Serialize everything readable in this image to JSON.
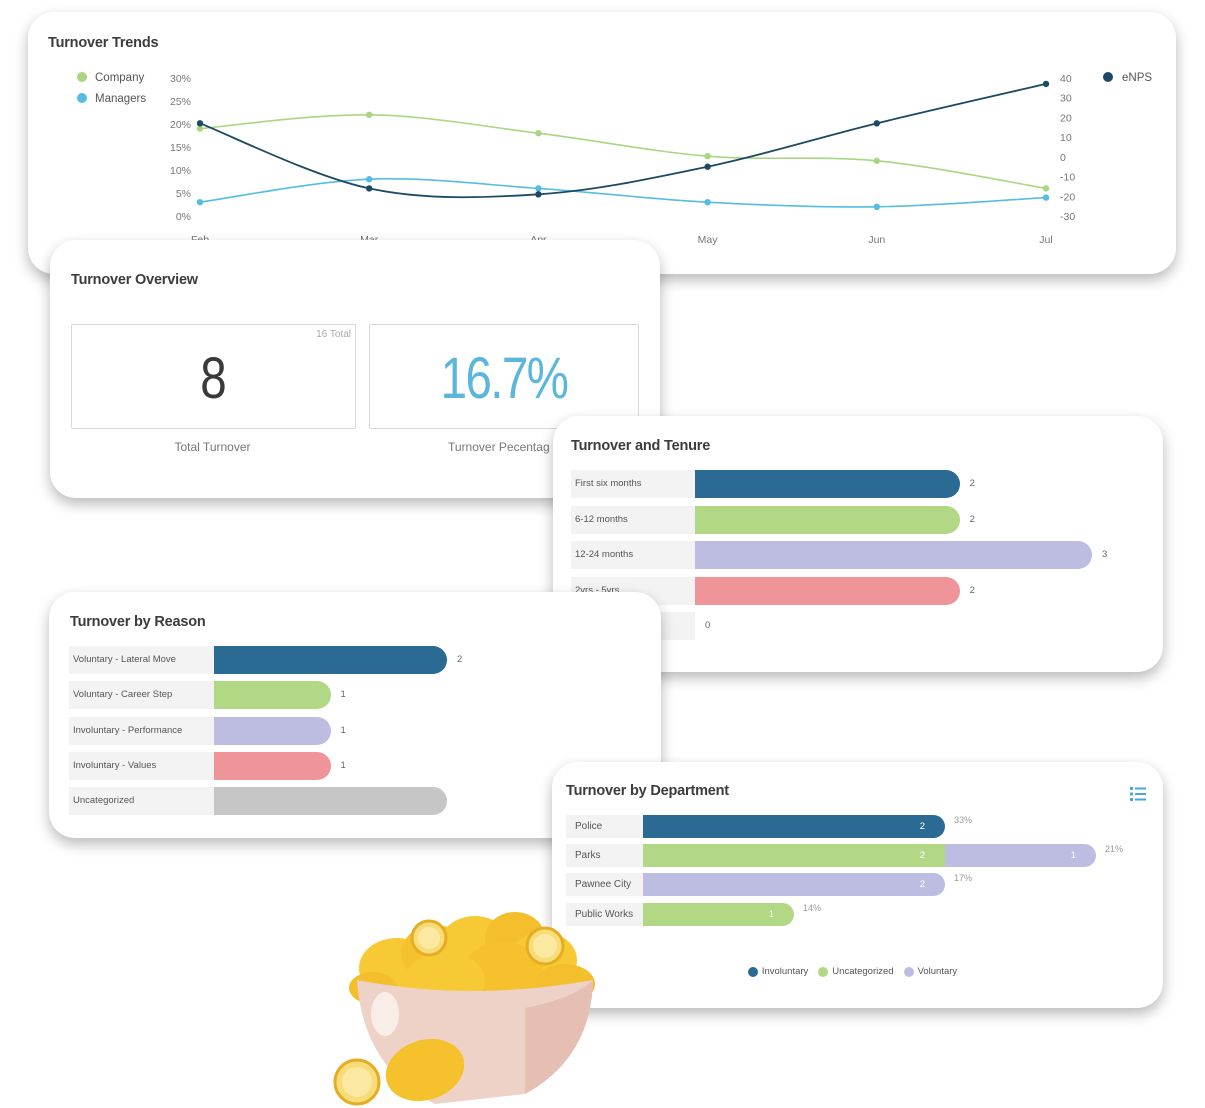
{
  "colors": {
    "company": "#a8d682",
    "managers": "#55bde2",
    "enps": "#1c4a65",
    "navy_bar": "#2b6a93",
    "green_bar": "#b2d885",
    "lavender_bar": "#bdbde1",
    "pink_bar": "#ef9599",
    "grey_bar": "#c6c6c6",
    "blue_text": "#5ab6da"
  },
  "trends": {
    "title": "Turnover Trends",
    "legend_company": "Company",
    "legend_managers": "Managers",
    "legend_enps": "eNPS"
  },
  "overview": {
    "title": "Turnover Overview",
    "total_value": "8",
    "total_note": "16 Total",
    "total_label": "Total Turnover",
    "pct_value": "16.7%",
    "pct_label": "Turnover Pecentag"
  },
  "tenure": {
    "title": "Turnover and Tenure",
    "rows": [
      {
        "label": "First six months",
        "value": 2,
        "value_text": "2",
        "color": "#2b6a93"
      },
      {
        "label": "6-12 months",
        "value": 2,
        "value_text": "2",
        "color": "#b2d885"
      },
      {
        "label": "12-24 months",
        "value": 3,
        "value_text": "3",
        "color": "#bdbde1"
      },
      {
        "label": "2yrs - 5yrs",
        "value": 2,
        "value_text": "2",
        "color": "#ef9599"
      },
      {
        "label": "",
        "value": 0,
        "value_text": "0",
        "color": "#c6c6c6"
      }
    ]
  },
  "reason": {
    "title": "Turnover by Reason",
    "rows": [
      {
        "label": "Voluntary - Lateral Move",
        "value": 2,
        "value_text": "2",
        "color": "#2b6a93"
      },
      {
        "label": "Voluntary - Career Step",
        "value": 1,
        "value_text": "1",
        "color": "#b2d885"
      },
      {
        "label": "Involuntary - Performance",
        "value": 1,
        "value_text": "1",
        "color": "#bdbde1"
      },
      {
        "label": "Involuntary - Values",
        "value": 1,
        "value_text": "1",
        "color": "#ef9599"
      },
      {
        "label": "Uncategorized",
        "value": 2,
        "value_text": "",
        "color": "#c6c6c6"
      }
    ]
  },
  "department": {
    "title": "Turnover by Department",
    "menu_icon": "list-icon",
    "rows": [
      {
        "label": "Police",
        "pct": "33%",
        "segments": [
          {
            "series": "Involuntary",
            "value": 2,
            "value_text": "2"
          }
        ]
      },
      {
        "label": "Parks",
        "pct": "21%",
        "segments": [
          {
            "series": "Uncategorized",
            "value": 2,
            "value_text": "2"
          },
          {
            "series": "Voluntary",
            "value": 1,
            "value_text": "1"
          }
        ]
      },
      {
        "label": "Pawnee City",
        "pct": "17%",
        "segments": [
          {
            "series": "Voluntary",
            "value": 2,
            "value_text": "2"
          }
        ]
      },
      {
        "label": "Public Works",
        "pct": "14%",
        "segments": [
          {
            "series": "Uncategorized",
            "value": 1,
            "value_text": "1"
          }
        ]
      }
    ],
    "legend": [
      {
        "name": "Involuntary",
        "color": "#2b6a93"
      },
      {
        "name": "Uncategorized",
        "color": "#b2d885"
      },
      {
        "name": "Voluntary",
        "color": "#bdbde1"
      }
    ]
  },
  "chart_data": [
    {
      "type": "line",
      "title": "Turnover Trends",
      "x": [
        "Feb",
        "Mar",
        "Apr",
        "May",
        "Jun",
        "Jul"
      ],
      "y_left_ticks": [
        "30%",
        "25%",
        "20%",
        "15%",
        "10%",
        "5%",
        "0%"
      ],
      "y_left_range": [
        0,
        30
      ],
      "y_right_ticks": [
        "40",
        "30",
        "20",
        "10",
        "0",
        "-10",
        "-20",
        "-30"
      ],
      "y_right_range": [
        -30,
        40
      ],
      "grid": false,
      "series": [
        {
          "name": "Company",
          "axis": "left",
          "values": [
            19,
            22,
            18,
            13,
            12,
            6
          ]
        },
        {
          "name": "Managers",
          "axis": "left",
          "values": [
            3,
            8,
            6,
            3,
            2,
            4
          ]
        },
        {
          "name": "eNPS",
          "axis": "right",
          "values": [
            17,
            -16,
            -19,
            -5,
            17,
            37
          ]
        }
      ]
    },
    {
      "type": "bar",
      "title": "Turnover and Tenure",
      "categories": [
        "First six months",
        "6-12 months",
        "12-24 months",
        "2yrs - 5yrs",
        ""
      ],
      "values": [
        2,
        2,
        3,
        2,
        0
      ]
    },
    {
      "type": "bar",
      "title": "Turnover by Reason",
      "categories": [
        "Voluntary - Lateral Move",
        "Voluntary - Career Step",
        "Involuntary - Performance",
        "Involuntary - Values",
        "Uncategorized"
      ],
      "values": [
        2,
        1,
        1,
        1,
        2
      ]
    },
    {
      "type": "bar",
      "title": "Turnover by Department",
      "categories": [
        "Police",
        "Parks",
        "Pawnee City",
        "Public Works"
      ],
      "series": [
        {
          "name": "Involuntary",
          "values": [
            2,
            0,
            0,
            0
          ]
        },
        {
          "name": "Uncategorized",
          "values": [
            0,
            2,
            0,
            1
          ]
        },
        {
          "name": "Voluntary",
          "values": [
            0,
            1,
            2,
            0
          ]
        }
      ],
      "percent_labels": [
        "33%",
        "21%",
        "17%",
        "14%"
      ]
    }
  ]
}
